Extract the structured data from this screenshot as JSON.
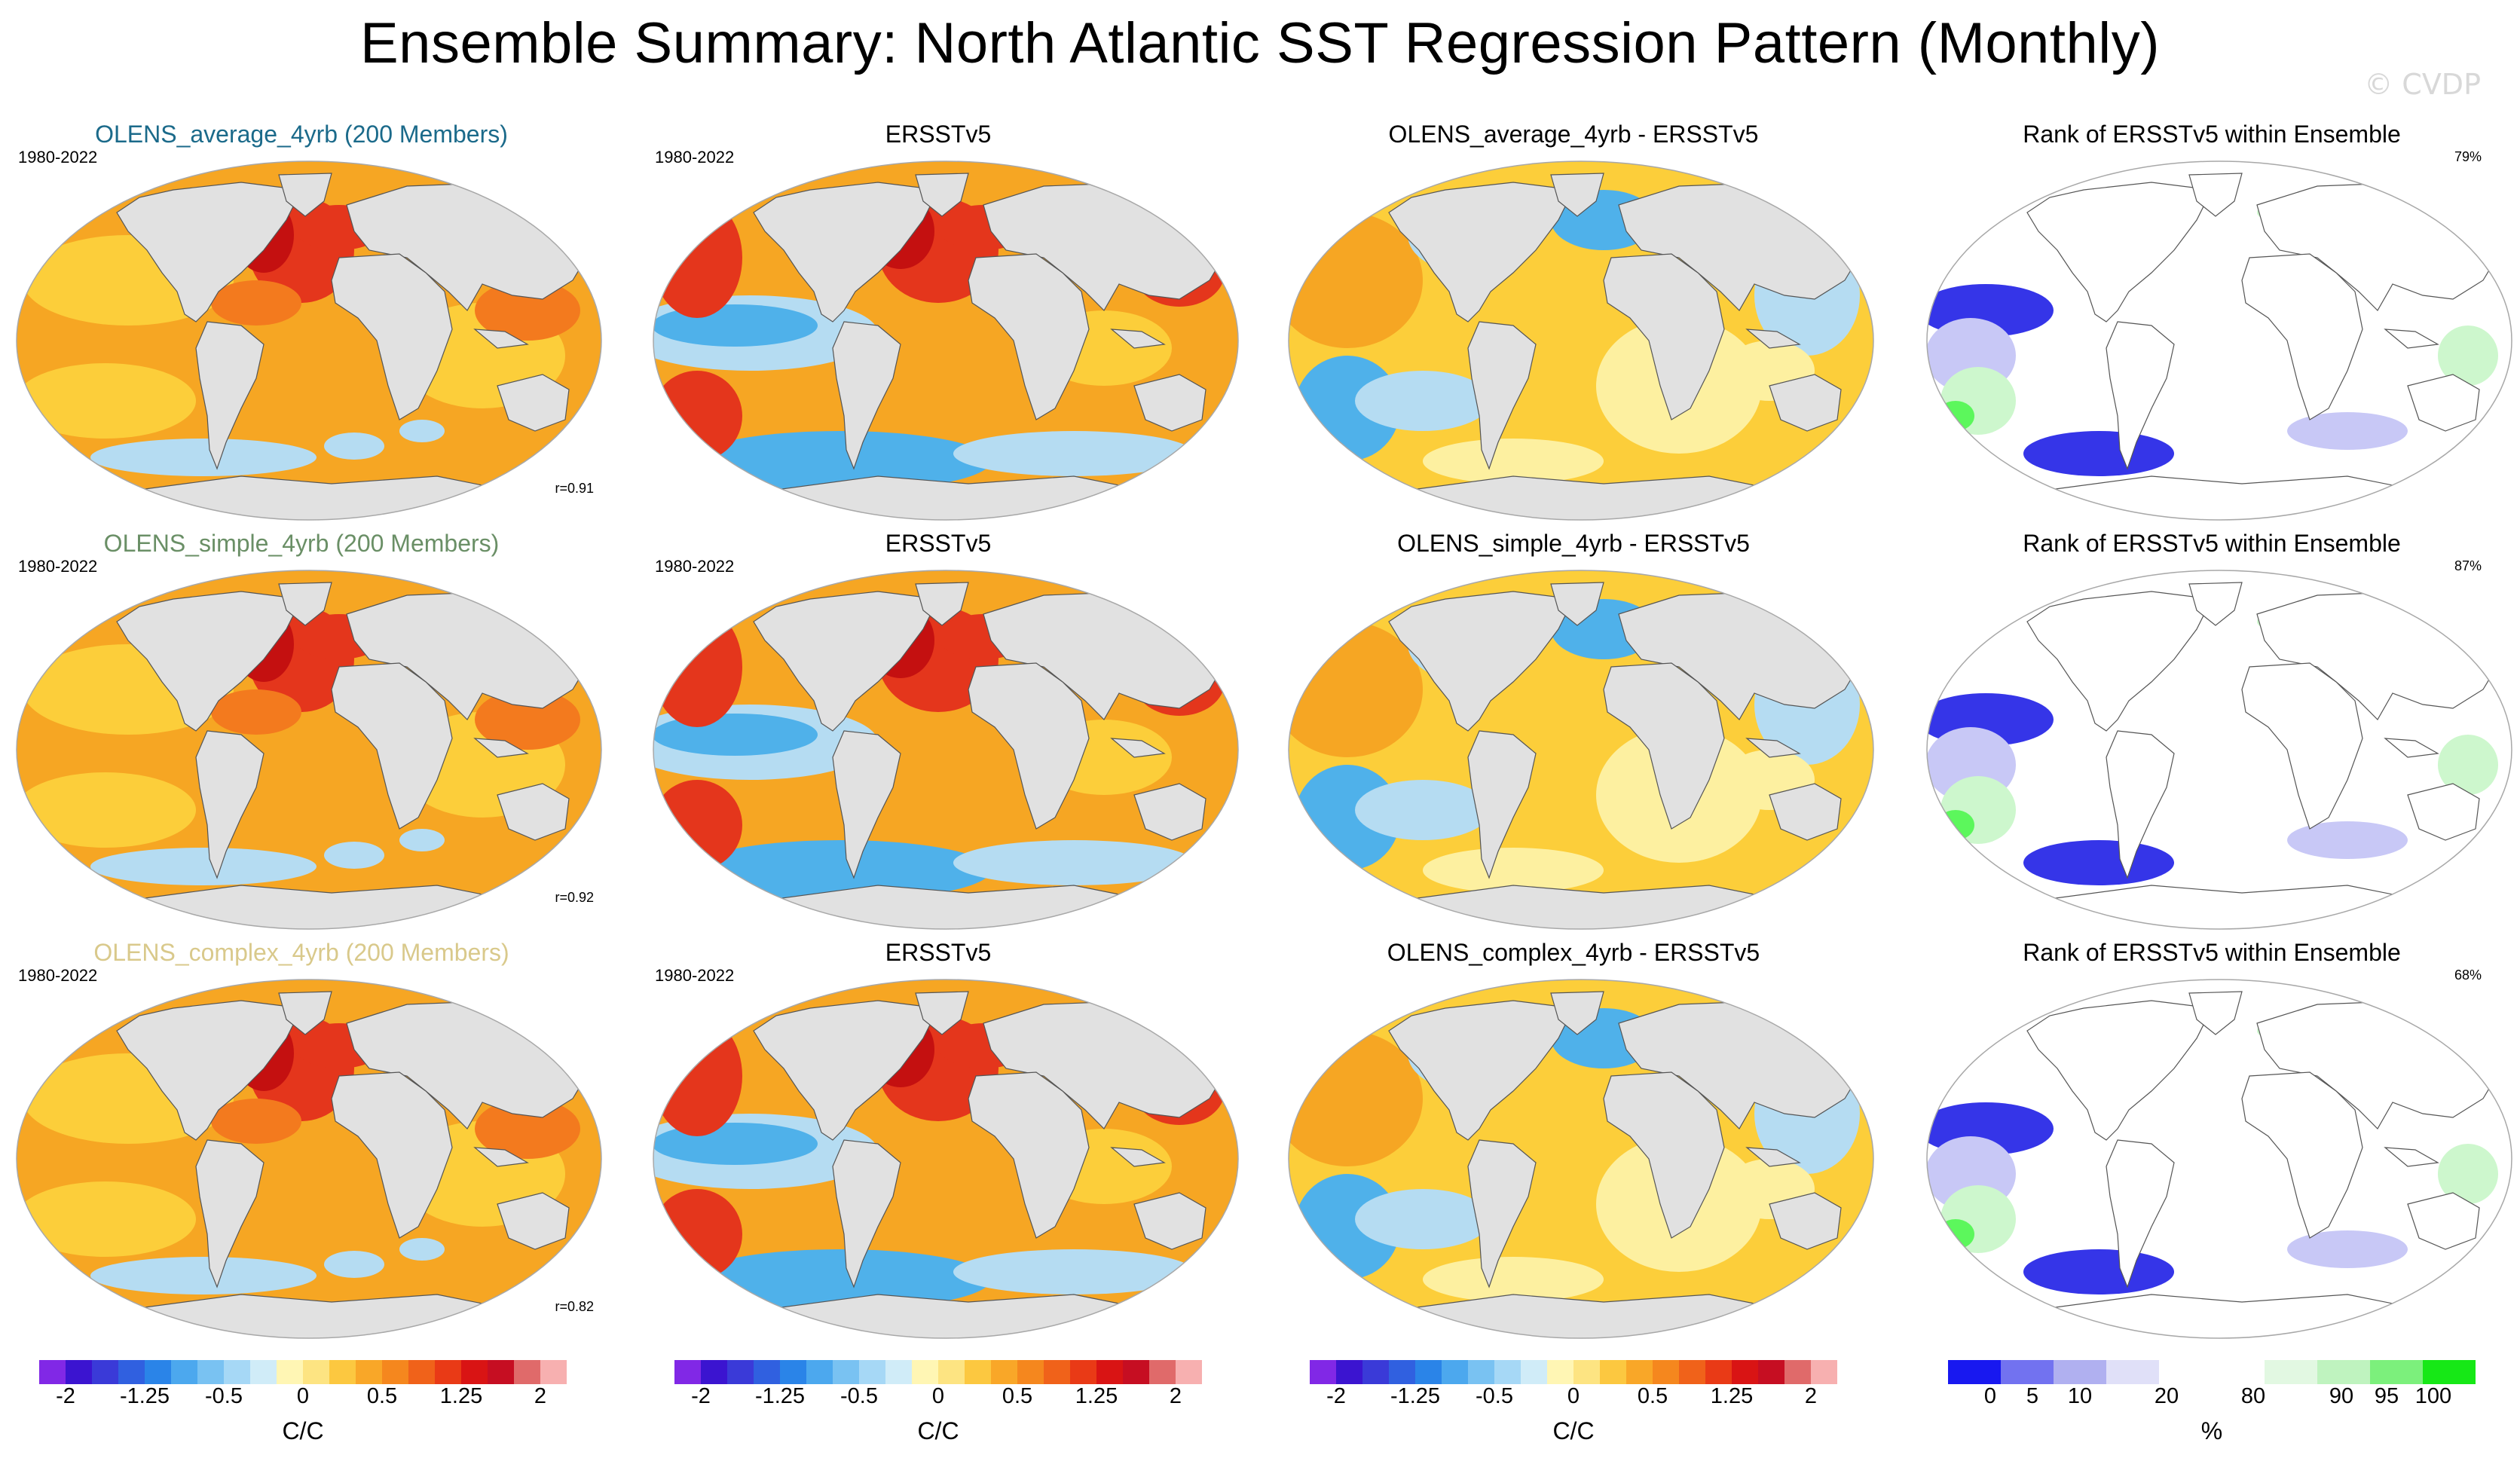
{
  "title": "Ensemble Summary: North Atlantic SST Regression Pattern (Monthly)",
  "copyright": "© CVDP",
  "colors": {
    "land": "#e1e1e1",
    "ocean_outline": "#a8a8a8",
    "warm_orange": "#f6a623",
    "light_orange": "#fcce3a",
    "deep_orange": "#f37a1e",
    "red": "#e4361c",
    "dark_red": "#c41010",
    "pale_blue": "#b5dcf2",
    "mid_blue": "#4fb1ea",
    "pale_yellow": "#fdf0a0",
    "rank_blue": "#3535e8",
    "rank_lightblue": "#c8c8f6",
    "rank_green": "#5cf75c",
    "rank_lightgreen": "#cdf7cd"
  },
  "rows": [
    {
      "model_title": "OLENS_average_4yrb (200 Members)",
      "model_title_color": "#1b6a8a",
      "period": "1980-2022",
      "pattern_corr": "r=0.91",
      "obs_title": "ERSSTv5",
      "obs_period": "1980-2022",
      "diff_title": "OLENS_average_4yrb - ERSSTv5",
      "rank_title": "Rank of ERSSTv5 within Ensemble",
      "rank_pct": "79%"
    },
    {
      "model_title": "OLENS_simple_4yrb (200 Members)",
      "model_title_color": "#6a8f66",
      "period": "1980-2022",
      "pattern_corr": "r=0.92",
      "obs_title": "ERSSTv5",
      "obs_period": "1980-2022",
      "diff_title": "OLENS_simple_4yrb - ERSSTv5",
      "rank_title": "Rank of ERSSTv5 within Ensemble",
      "rank_pct": "87%"
    },
    {
      "model_title": "OLENS_complex_4yrb (200 Members)",
      "model_title_color": "#d9c98b",
      "period": "1980-2022",
      "pattern_corr": "r=0.82",
      "obs_title": "ERSSTv5",
      "obs_period": "1980-2022",
      "diff_title": "OLENS_complex_4yrb - ERSSTv5",
      "rank_title": "Rank of ERSSTv5 within Ensemble",
      "rank_pct": "68%"
    }
  ],
  "colorbars": {
    "sst": {
      "unit_label": "C/C",
      "tick_labels": [
        "-2",
        "-1.25",
        "-0.5",
        "0",
        "0.5",
        "1.25",
        "2"
      ],
      "colors": [
        "#8128e6",
        "#3b14d0",
        "#3a3ad8",
        "#3060e0",
        "#2a84e8",
        "#4ca8ee",
        "#79c2f2",
        "#a6d8f6",
        "#d0ecf8",
        "#fff6b4",
        "#fde482",
        "#fcc840",
        "#f9a728",
        "#f5871e",
        "#f0621a",
        "#e93a16",
        "#d91414",
        "#c60e22",
        "#e06a6a",
        "#f7b0b0"
      ]
    },
    "rank": {
      "unit_label": "%",
      "tick_labels": [
        "0",
        "5",
        "10",
        "20",
        "80",
        "90",
        "95",
        "100"
      ],
      "colors": [
        "#1818f0",
        "#7272f0",
        "#b0b0f0",
        "#e0e0f8",
        "#ffffff",
        "#ffffff",
        "#e2f8e2",
        "#bff3bf",
        "#7cf07c",
        "#16e816"
      ]
    }
  }
}
